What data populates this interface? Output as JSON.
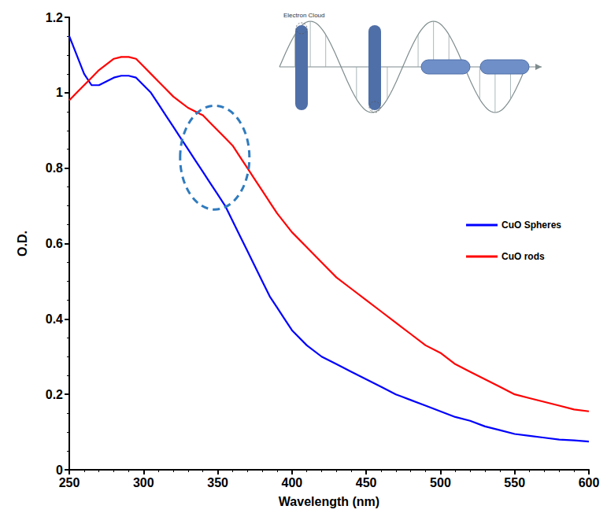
{
  "chart_data": {
    "type": "line",
    "x_label": "Wavelength (nm)",
    "y_label": "O.D.",
    "xlim": [
      250,
      600
    ],
    "xticks": [
      250,
      300,
      350,
      400,
      450,
      500,
      550,
      600
    ],
    "ylim": [
      0,
      1.2
    ],
    "yticks": [
      0,
      0.2,
      0.4,
      0.6,
      0.8,
      1,
      1.2
    ],
    "grid": false,
    "legend": "right",
    "annotations": [
      "Electron Cloud"
    ],
    "x": [
      250,
      255,
      260,
      265,
      270,
      275,
      280,
      285,
      290,
      295,
      300,
      305,
      310,
      315,
      320,
      325,
      330,
      335,
      340,
      345,
      350,
      355,
      360,
      365,
      370,
      375,
      380,
      385,
      390,
      395,
      400,
      410,
      420,
      430,
      440,
      450,
      460,
      470,
      480,
      490,
      500,
      510,
      520,
      530,
      540,
      550,
      560,
      570,
      580,
      590,
      600
    ],
    "series": [
      {
        "name": "CuO Spheres",
        "color": "#0000ff",
        "values": [
          1.15,
          1.1,
          1.05,
          1.02,
          1.02,
          1.03,
          1.04,
          1.045,
          1.045,
          1.04,
          1.02,
          1.0,
          0.97,
          0.94,
          0.91,
          0.88,
          0.85,
          0.82,
          0.79,
          0.76,
          0.73,
          0.7,
          0.66,
          0.62,
          0.58,
          0.54,
          0.5,
          0.46,
          0.43,
          0.4,
          0.37,
          0.33,
          0.3,
          0.28,
          0.26,
          0.24,
          0.22,
          0.2,
          0.185,
          0.17,
          0.155,
          0.14,
          0.13,
          0.115,
          0.105,
          0.095,
          0.09,
          0.085,
          0.08,
          0.078,
          0.075
        ]
      },
      {
        "name": "CuO rods",
        "color": "#ff0000",
        "values": [
          0.98,
          1.0,
          1.02,
          1.04,
          1.06,
          1.075,
          1.09,
          1.095,
          1.095,
          1.09,
          1.07,
          1.05,
          1.03,
          1.01,
          0.99,
          0.975,
          0.96,
          0.95,
          0.94,
          0.92,
          0.9,
          0.88,
          0.86,
          0.83,
          0.8,
          0.77,
          0.74,
          0.71,
          0.68,
          0.655,
          0.63,
          0.59,
          0.55,
          0.51,
          0.48,
          0.45,
          0.42,
          0.39,
          0.36,
          0.33,
          0.31,
          0.28,
          0.26,
          0.24,
          0.22,
          0.2,
          0.19,
          0.18,
          0.17,
          0.16,
          0.155
        ]
      }
    ]
  }
}
